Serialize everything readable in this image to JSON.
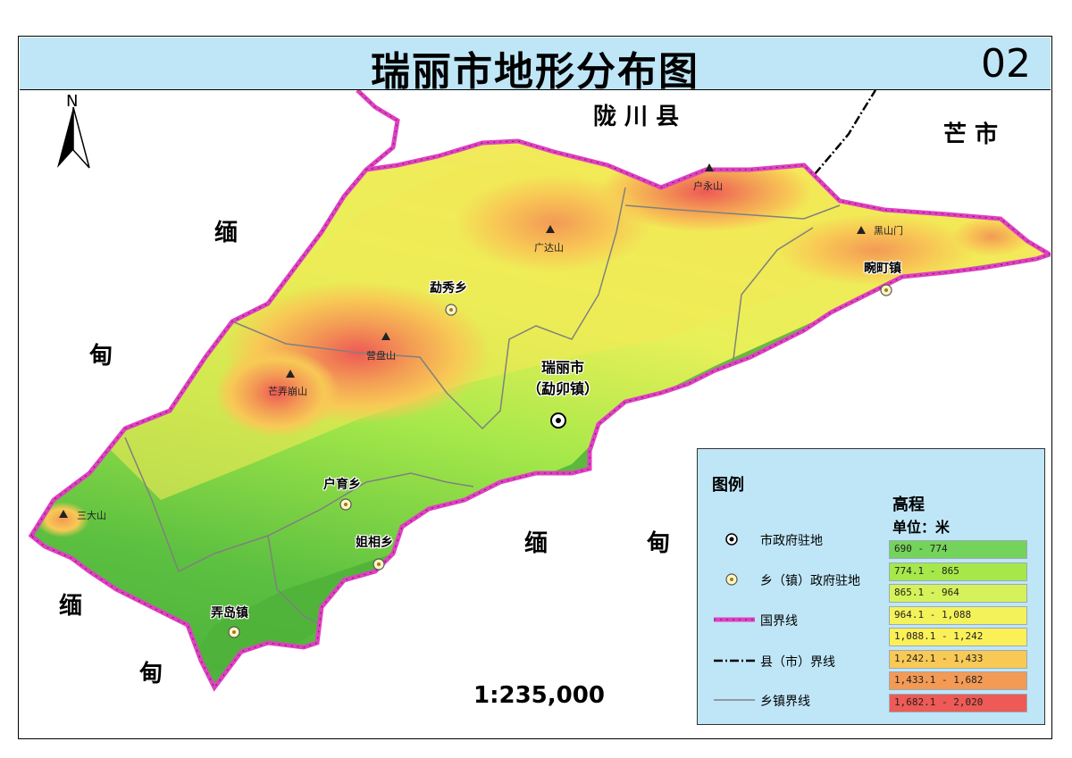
{
  "title": "瑞丽市地形分布图",
  "map_number": "02",
  "scale": "1:235,000",
  "north_label": "N",
  "regions": {
    "longchuan": "陇 川 县",
    "mangshi": "芒 市",
    "burma_nw_1": "缅",
    "burma_nw_2": "甸",
    "burma_s_1": "缅",
    "burma_s_2": "甸",
    "burma_sw_1": "缅",
    "burma_sw_2": "甸"
  },
  "city": {
    "line1": "瑞丽市",
    "line2": "（勐卯镇）"
  },
  "towns": {
    "mengxiu": "勐秀乡",
    "wanding": "畹町镇",
    "huyu": "户育乡",
    "jiexiang": "姐相乡",
    "nongdao": "弄岛镇"
  },
  "peaks": {
    "huyong": "户永山",
    "guangda": "广达山",
    "heishanmen": "黑山门",
    "yingpan": "营盘山",
    "mangnong": "芒弄崩山",
    "sanda": "三大山"
  },
  "legend": {
    "title": "图例",
    "items": {
      "city_seat": "市政府驻地",
      "town_seat": "乡（镇）政府驻地",
      "national_border": "国界线",
      "county_border": "县（市）界线",
      "township_border": "乡镇界线"
    },
    "elevation_title": "高程",
    "elevation_unit": "单位：米",
    "classes": [
      {
        "label": "690 - 774",
        "color": "#74d35a"
      },
      {
        "label": "774.1 - 865",
        "color": "#a6e84a"
      },
      {
        "label": "865.1 - 964",
        "color": "#d6f25a"
      },
      {
        "label": "964.1 - 1,088",
        "color": "#f4f25a"
      },
      {
        "label": "1,088.1 - 1,242",
        "color": "#fbf058"
      },
      {
        "label": "1,242.1 - 1,433",
        "color": "#f8c955"
      },
      {
        "label": "1,433.1 - 1,682",
        "color": "#f39a55"
      },
      {
        "label": "1,682.1 - 2,020",
        "color": "#ee5a55"
      }
    ]
  },
  "colors": {
    "title_bar": "#bfe6f7",
    "legend_bg": "#bfe6f7",
    "national_border": "#e040c0",
    "county_border": "#000000",
    "township_border": "#808080"
  }
}
